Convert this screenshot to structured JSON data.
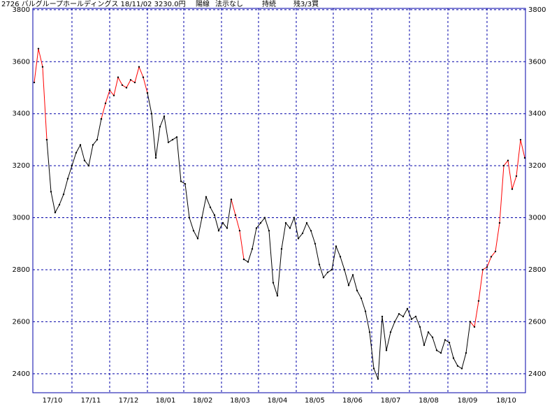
{
  "chart_data": {
    "type": "line",
    "header": [
      "2726 バルグループホールディングス 18/11/02 3230.0円",
      "陽線",
      "法示なし",
      "持続",
      "残3/3買"
    ],
    "ylim": [
      2327,
      3805
    ],
    "yticks": [
      2400,
      2600,
      2800,
      3000,
      3200,
      3400,
      3600,
      3800
    ],
    "xlim": [
      -0.33,
      117.17
    ],
    "xticks": [
      {
        "value": -0.33,
        "label": "17/10"
      },
      {
        "value": 9,
        "label": "17/11"
      },
      {
        "value": 18,
        "label": "17/12"
      },
      {
        "value": 27,
        "label": "18/01"
      },
      {
        "value": 35.67,
        "label": "18/02"
      },
      {
        "value": 44.67,
        "label": "18/03"
      },
      {
        "value": 53.5,
        "label": "18/04"
      },
      {
        "value": 62.5,
        "label": "18/05"
      },
      {
        "value": 71.33,
        "label": "18/06"
      },
      {
        "value": 80.5,
        "label": "18/07"
      },
      {
        "value": 89.5,
        "label": "18/08"
      },
      {
        "value": 98.67,
        "label": "18/09"
      },
      {
        "value": 108,
        "label": "18/10"
      }
    ],
    "grid": true,
    "frame_color": "#0000a8",
    "series": [
      {
        "color": "#000000",
        "values": [
          null,
          null,
          null,
          3300,
          3100,
          3020,
          3050,
          3090,
          3150,
          3200,
          3250,
          3280,
          3220,
          3200,
          3280,
          3300,
          3380,
          null,
          null,
          null,
          null,
          null,
          null,
          null,
          null,
          null,
          null,
          3480,
          3400,
          3230,
          3350,
          3390,
          3290,
          3300,
          3310,
          3140,
          3130,
          3000,
          2950,
          2920,
          3000,
          3080,
          3040,
          3010,
          2950,
          2980,
          2960,
          3070,
          null,
          null,
          2840,
          2830,
          2880,
          2960,
          2980,
          3000,
          2950,
          2750,
          2700,
          2880,
          2980,
          2960,
          3000,
          2920,
          2940,
          2980,
          2950,
          2900,
          2820,
          2770,
          2790,
          2800,
          2890,
          2850,
          2800,
          2740,
          2780,
          2720,
          2690,
          2640,
          2560,
          2420,
          2380,
          2620,
          2490,
          2560,
          2600,
          2630,
          2620,
          2650,
          2610,
          2620,
          2580,
          2510,
          2560,
          2540,
          2490,
          2480,
          2530,
          2520,
          2460,
          2430,
          2420,
          2480,
          2600,
          null,
          null,
          null,
          null,
          null,
          null,
          null,
          null,
          null,
          null,
          null,
          null,
          null
        ]
      },
      {
        "color": "#ff0000",
        "values": [
          3520,
          3650,
          3580,
          3300,
          null,
          null,
          null,
          null,
          null,
          null,
          null,
          null,
          null,
          null,
          null,
          null,
          3380,
          3440,
          3490,
          3470,
          3540,
          3510,
          3500,
          3530,
          3520,
          3580,
          3540,
          3480,
          null,
          null,
          null,
          null,
          null,
          null,
          null,
          null,
          null,
          null,
          null,
          null,
          null,
          null,
          null,
          null,
          null,
          null,
          null,
          3070,
          3010,
          2950,
          2840,
          null,
          null,
          null,
          null,
          null,
          null,
          null,
          null,
          null,
          null,
          null,
          null,
          null,
          null,
          null,
          null,
          null,
          null,
          null,
          null,
          null,
          null,
          null,
          null,
          null,
          null,
          null,
          null,
          null,
          null,
          null,
          null,
          null,
          null,
          null,
          null,
          null,
          null,
          null,
          null,
          null,
          null,
          null,
          null,
          null,
          null,
          null,
          null,
          null,
          null,
          null,
          null,
          null,
          2600,
          2580,
          2680,
          2800,
          2810,
          2850,
          2870,
          2980,
          3200,
          3220,
          3110,
          3160,
          3300,
          3230
        ]
      }
    ]
  }
}
